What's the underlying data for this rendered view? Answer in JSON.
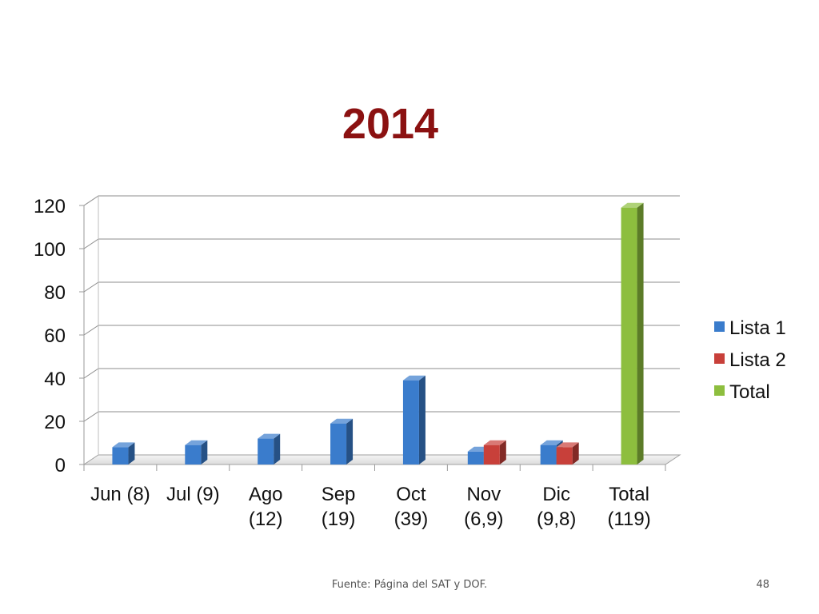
{
  "slide": {
    "footer": "Fuente: Página del SAT y DOF.",
    "page_number": "48"
  },
  "chart_data": {
    "type": "bar",
    "title": "2014",
    "xlabel": "",
    "ylabel": "",
    "ylim": [
      0,
      120
    ],
    "yticks": [
      0,
      20,
      40,
      60,
      80,
      100,
      120
    ],
    "grid": true,
    "legend_position": "right",
    "categories": [
      [
        "Jun (8)"
      ],
      [
        "Jul (9)"
      ],
      [
        "Ago",
        "(12)"
      ],
      [
        "Sep",
        "(19)"
      ],
      [
        "Oct",
        "(39)"
      ],
      [
        "Nov",
        "(6,9)"
      ],
      [
        "Dic",
        "(9,8)"
      ],
      [
        "Total",
        "(119)"
      ]
    ],
    "series": [
      {
        "name": "Lista 1",
        "color": "#3a7ccc",
        "values": [
          8,
          9,
          12,
          19,
          39,
          6,
          9,
          null
        ]
      },
      {
        "name": "Lista 2",
        "color": "#c8403a",
        "values": [
          null,
          null,
          null,
          null,
          null,
          9,
          8,
          null
        ]
      },
      {
        "name": "Total",
        "color": "#8dbe3e",
        "values": [
          null,
          null,
          null,
          null,
          null,
          null,
          null,
          119
        ]
      }
    ]
  }
}
